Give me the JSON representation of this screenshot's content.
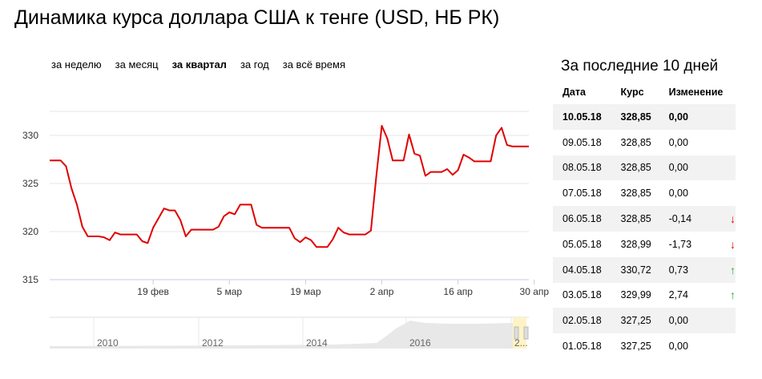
{
  "title": "Динамика курса доллара США к тенге (USD, НБ РК)",
  "periods": [
    {
      "label": "за неделю",
      "active": false
    },
    {
      "label": "за месяц",
      "active": false
    },
    {
      "label": "за квартал",
      "active": true
    },
    {
      "label": "за год",
      "active": false
    },
    {
      "label": "за всё время",
      "active": false
    }
  ],
  "chart_data": {
    "type": "line",
    "title": "Динамика курса доллара США к тенге (USD, НБ РК)",
    "xlabel": "",
    "ylabel": "",
    "ylim": [
      315,
      332.5
    ],
    "yticks": [
      "315",
      "320",
      "325",
      "330"
    ],
    "xticks": [
      {
        "label": "19 фев",
        "day": 19
      },
      {
        "label": "5 мар",
        "day": 33
      },
      {
        "label": "19 мар",
        "day": 47
      },
      {
        "label": "2 апр",
        "day": 61
      },
      {
        "label": "16 апр",
        "day": 75
      },
      {
        "label": "30 апр",
        "day": 89
      }
    ],
    "grid": true,
    "line_color": "#e00000",
    "series": [
      {
        "values": [
          [
            0,
            327.4
          ],
          [
            2,
            327.4
          ],
          [
            3,
            326.8
          ],
          [
            4,
            324.5
          ],
          [
            5,
            322.8
          ],
          [
            6,
            320.5
          ],
          [
            7,
            319.5
          ],
          [
            9,
            319.5
          ],
          [
            10,
            319.4
          ],
          [
            11,
            319.1
          ],
          [
            12,
            319.9
          ],
          [
            13,
            319.7
          ],
          [
            16,
            319.7
          ],
          [
            17,
            319.0
          ],
          [
            18,
            318.8
          ],
          [
            19,
            320.4
          ],
          [
            20,
            321.4
          ],
          [
            21,
            322.4
          ],
          [
            22,
            322.2
          ],
          [
            23,
            322.2
          ],
          [
            24,
            321.2
          ],
          [
            25,
            319.5
          ],
          [
            26,
            320.2
          ],
          [
            30,
            320.2
          ],
          [
            31,
            320.5
          ],
          [
            32,
            321.6
          ],
          [
            33,
            322.0
          ],
          [
            34,
            321.8
          ],
          [
            35,
            322.8
          ],
          [
            37,
            322.8
          ],
          [
            38,
            320.7
          ],
          [
            39,
            320.4
          ],
          [
            44,
            320.4
          ],
          [
            45,
            319.3
          ],
          [
            46,
            318.9
          ],
          [
            47,
            319.4
          ],
          [
            48,
            319.1
          ],
          [
            49,
            318.4
          ],
          [
            51,
            318.4
          ],
          [
            52,
            319.2
          ],
          [
            53,
            320.4
          ],
          [
            54,
            319.9
          ],
          [
            55,
            319.7
          ],
          [
            58,
            319.7
          ],
          [
            59,
            320.1
          ],
          [
            60,
            325.8
          ],
          [
            61,
            331.0
          ],
          [
            62,
            329.7
          ],
          [
            63,
            327.4
          ],
          [
            65,
            327.4
          ],
          [
            66,
            330.1
          ],
          [
            67,
            328.1
          ],
          [
            68,
            327.9
          ],
          [
            69,
            325.8
          ],
          [
            70,
            326.2
          ],
          [
            72,
            326.2
          ],
          [
            73,
            326.5
          ],
          [
            74,
            325.9
          ],
          [
            75,
            326.4
          ],
          [
            76,
            328.0
          ],
          [
            77,
            327.7
          ],
          [
            78,
            327.3
          ],
          [
            81,
            327.3
          ],
          [
            82,
            330.0
          ],
          [
            83,
            330.8
          ],
          [
            84,
            329.0
          ],
          [
            85,
            328.85
          ],
          [
            88,
            328.85
          ]
        ]
      }
    ]
  },
  "navigator": {
    "years": [
      "2010",
      "2012",
      "2014",
      "2016",
      "2..."
    ]
  },
  "side": {
    "title": "За последние 10 дней",
    "headers": [
      "Дата",
      "Курс",
      "Изменение"
    ],
    "rows": [
      {
        "date": "10.05.18",
        "rate": "328,85",
        "change": "0,00",
        "arrow": ""
      },
      {
        "date": "09.05.18",
        "rate": "328,85",
        "change": "0,00",
        "arrow": ""
      },
      {
        "date": "08.05.18",
        "rate": "328,85",
        "change": "0,00",
        "arrow": ""
      },
      {
        "date": "07.05.18",
        "rate": "328,85",
        "change": "0,00",
        "arrow": ""
      },
      {
        "date": "06.05.18",
        "rate": "328,85",
        "change": "-0,14",
        "arrow": "down"
      },
      {
        "date": "05.05.18",
        "rate": "328,99",
        "change": "-1,73",
        "arrow": "down"
      },
      {
        "date": "04.05.18",
        "rate": "330,72",
        "change": "0,73",
        "arrow": "up"
      },
      {
        "date": "03.05.18",
        "rate": "329,99",
        "change": "2,74",
        "arrow": "up"
      },
      {
        "date": "02.05.18",
        "rate": "327,25",
        "change": "0,00",
        "arrow": ""
      },
      {
        "date": "01.05.18",
        "rate": "327,25",
        "change": "0,00",
        "arrow": ""
      }
    ],
    "arrow_colors": {
      "down": "#e00000",
      "up": "#1fae2e"
    }
  }
}
